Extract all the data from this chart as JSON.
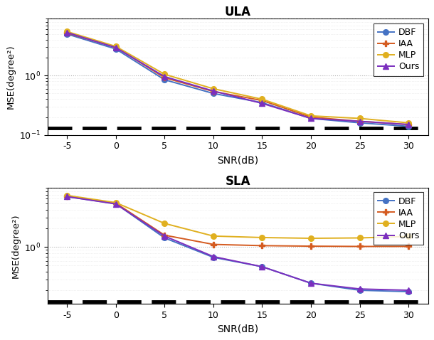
{
  "snr": [
    -5,
    0,
    5,
    10,
    15,
    20,
    25,
    30
  ],
  "ula_DBF": [
    5.0,
    2.8,
    0.85,
    0.5,
    0.35,
    0.19,
    0.16,
    0.14
  ],
  "ula_IAA": [
    5.2,
    3.0,
    0.92,
    0.54,
    0.38,
    0.2,
    0.17,
    0.15
  ],
  "ula_MLP": [
    5.5,
    3.1,
    1.05,
    0.6,
    0.4,
    0.21,
    0.19,
    0.16
  ],
  "ula_Ours": [
    5.3,
    2.95,
    0.96,
    0.55,
    0.34,
    0.19,
    0.17,
    0.15
  ],
  "sla_DBF": [
    6.5,
    5.0,
    1.4,
    0.68,
    0.48,
    0.26,
    0.2,
    0.19
  ],
  "sla_IAA": [
    6.6,
    5.1,
    1.55,
    1.1,
    1.05,
    1.03,
    1.02,
    1.02
  ],
  "sla_MLP": [
    6.8,
    5.2,
    2.4,
    1.5,
    1.42,
    1.38,
    1.4,
    1.48
  ],
  "sla_Ours": [
    6.5,
    4.95,
    1.5,
    0.7,
    0.48,
    0.26,
    0.21,
    0.2
  ],
  "colors": {
    "DBF": "#4472C4",
    "IAA": "#D45B20",
    "MLP": "#E0B020",
    "Ours": "#7B2FBE"
  },
  "markers": {
    "DBF": "o",
    "IAA": "P",
    "MLP": "o",
    "Ours": "^"
  },
  "crb_value": 0.13,
  "title_ula": "ULA",
  "title_sla": "SLA",
  "xlabel": "SNR(dB)",
  "ylabel": "MSE(degree²)",
  "ylim_ula": [
    0.1,
    9.0
  ],
  "ylim_sla": [
    0.12,
    9.0
  ],
  "yticks": [
    0.2,
    1.0
  ],
  "legend_labels": [
    "DBF",
    "IAA",
    "MLP",
    "Ours"
  ],
  "background_color": "#ffffff"
}
